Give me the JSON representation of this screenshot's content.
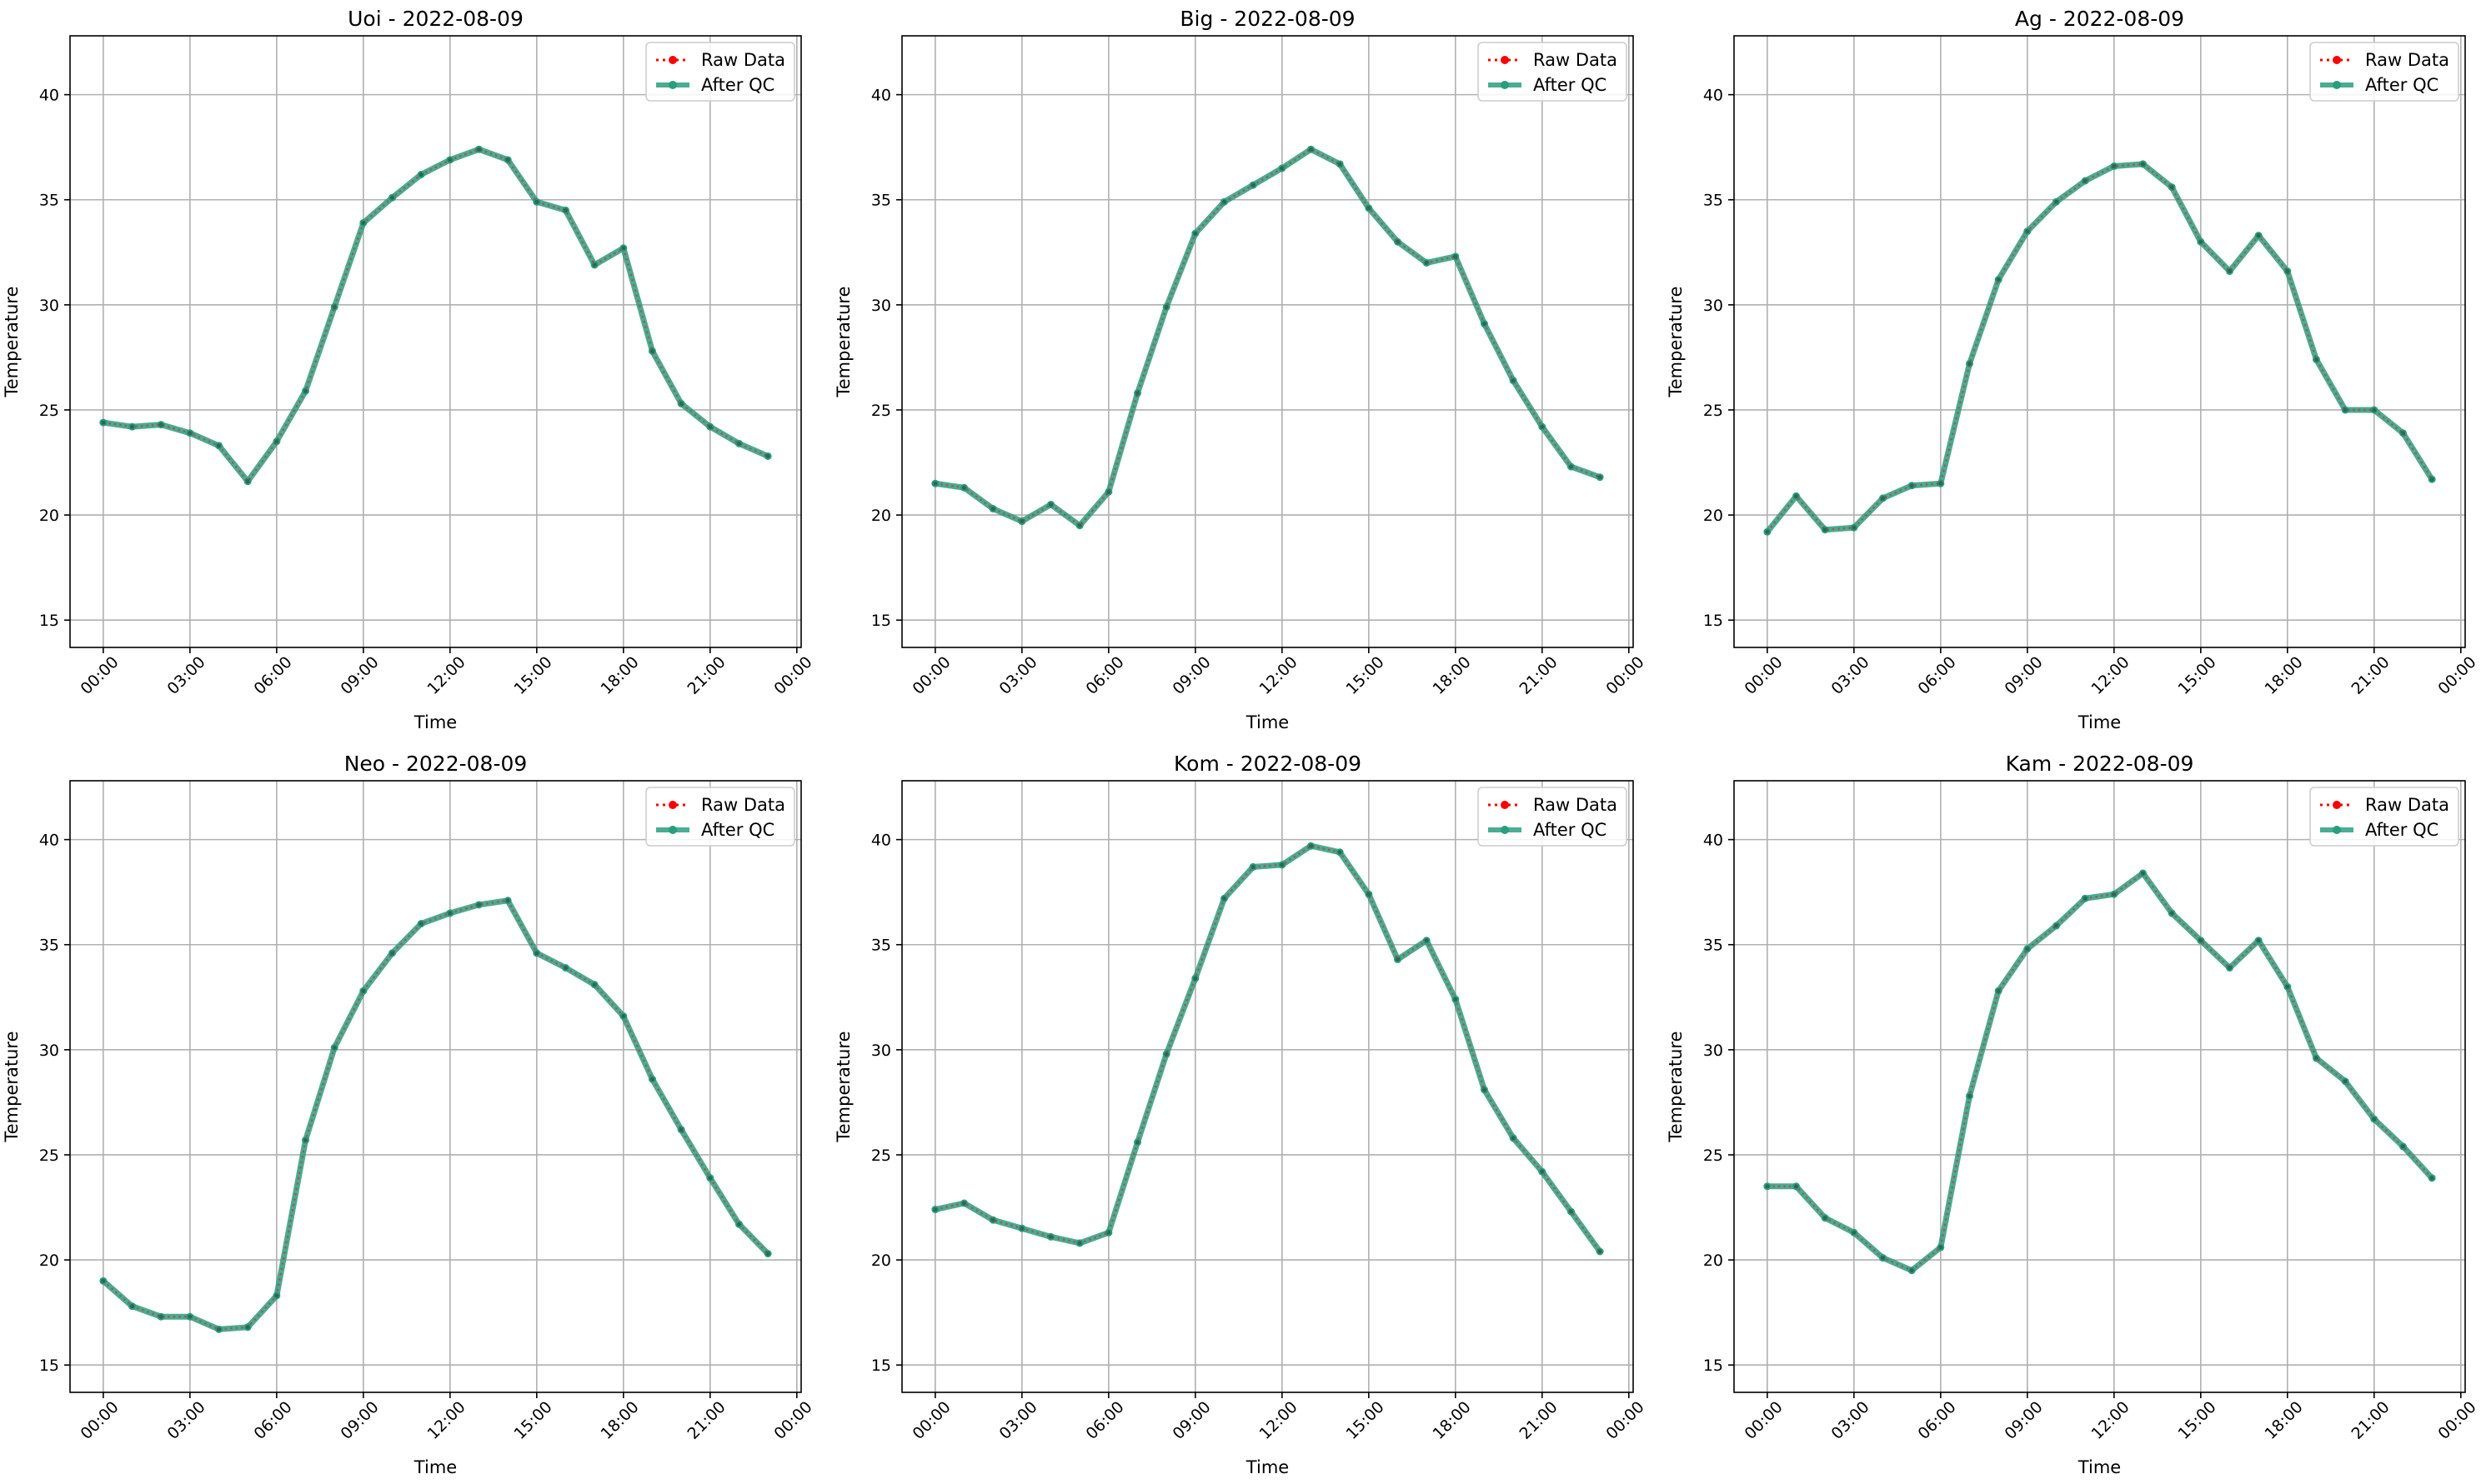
{
  "chart_data": [
    {
      "type": "line",
      "title": "Uoi - 2022-08-09",
      "xlabel": "Time",
      "ylabel": "Temperature",
      "x": [
        "00:00",
        "01:00",
        "02:00",
        "03:00",
        "04:00",
        "05:00",
        "06:00",
        "07:00",
        "08:00",
        "09:00",
        "10:00",
        "11:00",
        "12:00",
        "13:00",
        "14:00",
        "15:00",
        "16:00",
        "17:00",
        "18:00",
        "19:00",
        "20:00",
        "21:00",
        "22:00",
        "23:00"
      ],
      "xticks": [
        "00:00",
        "03:00",
        "06:00",
        "09:00",
        "12:00",
        "15:00",
        "18:00",
        "21:00",
        "00:00"
      ],
      "yticks": [
        15,
        20,
        25,
        30,
        35,
        40
      ],
      "ylim": [
        13.7,
        42.8
      ],
      "grid": true,
      "legend_position": "top-right",
      "series": [
        {
          "name": "Raw Data",
          "color": "#ff0000",
          "style": "dotted",
          "values": [
            24.4,
            24.2,
            24.3,
            23.9,
            23.3,
            21.6,
            23.5,
            25.9,
            29.9,
            33.9,
            35.1,
            36.2,
            36.9,
            37.4,
            36.9,
            34.9,
            34.5,
            31.9,
            32.7,
            27.8,
            25.3,
            24.2,
            23.4,
            22.8
          ]
        },
        {
          "name": "After QC",
          "color": "#2a9d7e",
          "style": "solid",
          "values": [
            24.4,
            24.2,
            24.3,
            23.9,
            23.3,
            21.6,
            23.5,
            25.9,
            29.9,
            33.9,
            35.1,
            36.2,
            36.9,
            37.4,
            36.9,
            34.9,
            34.5,
            31.9,
            32.7,
            27.8,
            25.3,
            24.2,
            23.4,
            22.8
          ]
        }
      ]
    },
    {
      "type": "line",
      "title": "Big - 2022-08-09",
      "xlabel": "Time",
      "ylabel": "Temperature",
      "x": [
        "00:00",
        "01:00",
        "02:00",
        "03:00",
        "04:00",
        "05:00",
        "06:00",
        "07:00",
        "08:00",
        "09:00",
        "10:00",
        "11:00",
        "12:00",
        "13:00",
        "14:00",
        "15:00",
        "16:00",
        "17:00",
        "18:00",
        "19:00",
        "20:00",
        "21:00",
        "22:00",
        "23:00"
      ],
      "xticks": [
        "00:00",
        "03:00",
        "06:00",
        "09:00",
        "12:00",
        "15:00",
        "18:00",
        "21:00",
        "00:00"
      ],
      "yticks": [
        15,
        20,
        25,
        30,
        35,
        40
      ],
      "ylim": [
        13.7,
        42.8
      ],
      "grid": true,
      "legend_position": "top-right",
      "series": [
        {
          "name": "Raw Data",
          "color": "#ff0000",
          "style": "dotted",
          "values": [
            21.5,
            21.3,
            20.3,
            19.7,
            20.5,
            19.5,
            21.1,
            25.8,
            29.9,
            33.4,
            34.9,
            35.7,
            36.5,
            37.4,
            36.7,
            34.6,
            33.0,
            32.0,
            32.3,
            29.1,
            26.4,
            24.2,
            22.3,
            21.8
          ]
        },
        {
          "name": "After QC",
          "color": "#2a9d7e",
          "style": "solid",
          "values": [
            21.5,
            21.3,
            20.3,
            19.7,
            20.5,
            19.5,
            21.1,
            25.8,
            29.9,
            33.4,
            34.9,
            35.7,
            36.5,
            37.4,
            36.7,
            34.6,
            33.0,
            32.0,
            32.3,
            29.1,
            26.4,
            24.2,
            22.3,
            21.8
          ]
        }
      ]
    },
    {
      "type": "line",
      "title": "Ag - 2022-08-09",
      "xlabel": "Time",
      "ylabel": "Temperature",
      "x": [
        "00:00",
        "01:00",
        "02:00",
        "03:00",
        "04:00",
        "05:00",
        "06:00",
        "07:00",
        "08:00",
        "09:00",
        "10:00",
        "11:00",
        "12:00",
        "13:00",
        "14:00",
        "15:00",
        "16:00",
        "17:00",
        "18:00",
        "19:00",
        "20:00",
        "21:00",
        "22:00",
        "23:00"
      ],
      "xticks": [
        "00:00",
        "03:00",
        "06:00",
        "09:00",
        "12:00",
        "15:00",
        "18:00",
        "21:00",
        "00:00"
      ],
      "yticks": [
        15,
        20,
        25,
        30,
        35,
        40
      ],
      "ylim": [
        13.7,
        42.8
      ],
      "grid": true,
      "legend_position": "top-right",
      "series": [
        {
          "name": "Raw Data",
          "color": "#ff0000",
          "style": "dotted",
          "values": [
            19.2,
            20.9,
            19.3,
            19.4,
            20.8,
            21.4,
            21.5,
            27.2,
            31.2,
            33.5,
            34.9,
            35.9,
            36.6,
            36.7,
            35.6,
            33.0,
            31.6,
            33.3,
            31.6,
            27.4,
            25.0,
            25.0,
            23.9,
            21.7
          ]
        },
        {
          "name": "After QC",
          "color": "#2a9d7e",
          "style": "solid",
          "values": [
            19.2,
            20.9,
            19.3,
            19.4,
            20.8,
            21.4,
            21.5,
            27.2,
            31.2,
            33.5,
            34.9,
            35.9,
            36.6,
            36.7,
            35.6,
            33.0,
            31.6,
            33.3,
            31.6,
            27.4,
            25.0,
            25.0,
            23.9,
            21.7
          ]
        }
      ]
    },
    {
      "type": "line",
      "title": "Neo - 2022-08-09",
      "xlabel": "Time",
      "ylabel": "Temperature",
      "x": [
        "00:00",
        "01:00",
        "02:00",
        "03:00",
        "04:00",
        "05:00",
        "06:00",
        "07:00",
        "08:00",
        "09:00",
        "10:00",
        "11:00",
        "12:00",
        "13:00",
        "14:00",
        "15:00",
        "16:00",
        "17:00",
        "18:00",
        "19:00",
        "20:00",
        "21:00",
        "22:00",
        "23:00"
      ],
      "xticks": [
        "00:00",
        "03:00",
        "06:00",
        "09:00",
        "12:00",
        "15:00",
        "18:00",
        "21:00",
        "00:00"
      ],
      "yticks": [
        15,
        20,
        25,
        30,
        35,
        40
      ],
      "ylim": [
        13.7,
        42.8
      ],
      "grid": true,
      "legend_position": "top-right",
      "series": [
        {
          "name": "Raw Data",
          "color": "#ff0000",
          "style": "dotted",
          "values": [
            19.0,
            17.8,
            17.3,
            17.3,
            16.7,
            16.8,
            18.3,
            25.7,
            30.1,
            32.8,
            34.6,
            36.0,
            36.5,
            36.9,
            37.1,
            34.6,
            33.9,
            33.1,
            31.6,
            28.6,
            26.2,
            23.9,
            21.7,
            20.3
          ]
        },
        {
          "name": "After QC",
          "color": "#2a9d7e",
          "style": "solid",
          "values": [
            19.0,
            17.8,
            17.3,
            17.3,
            16.7,
            16.8,
            18.3,
            25.7,
            30.1,
            32.8,
            34.6,
            36.0,
            36.5,
            36.9,
            37.1,
            34.6,
            33.9,
            33.1,
            31.6,
            28.6,
            26.2,
            23.9,
            21.7,
            20.3
          ]
        }
      ]
    },
    {
      "type": "line",
      "title": "Kom - 2022-08-09",
      "xlabel": "Time",
      "ylabel": "Temperature",
      "x": [
        "00:00",
        "01:00",
        "02:00",
        "03:00",
        "04:00",
        "05:00",
        "06:00",
        "07:00",
        "08:00",
        "09:00",
        "10:00",
        "11:00",
        "12:00",
        "13:00",
        "14:00",
        "15:00",
        "16:00",
        "17:00",
        "18:00",
        "19:00",
        "20:00",
        "21:00",
        "22:00",
        "23:00"
      ],
      "xticks": [
        "00:00",
        "03:00",
        "06:00",
        "09:00",
        "12:00",
        "15:00",
        "18:00",
        "21:00",
        "00:00"
      ],
      "yticks": [
        15,
        20,
        25,
        30,
        35,
        40
      ],
      "ylim": [
        13.7,
        42.8
      ],
      "grid": true,
      "legend_position": "top-right",
      "series": [
        {
          "name": "Raw Data",
          "color": "#ff0000",
          "style": "dotted",
          "values": [
            22.4,
            22.7,
            21.9,
            21.5,
            21.1,
            20.8,
            21.3,
            25.6,
            29.8,
            33.4,
            37.2,
            38.7,
            38.8,
            39.7,
            39.4,
            37.4,
            34.3,
            35.2,
            32.4,
            28.1,
            25.8,
            24.2,
            22.3,
            20.4
          ]
        },
        {
          "name": "After QC",
          "color": "#2a9d7e",
          "style": "solid",
          "values": [
            22.4,
            22.7,
            21.9,
            21.5,
            21.1,
            20.8,
            21.3,
            25.6,
            29.8,
            33.4,
            37.2,
            38.7,
            38.8,
            39.7,
            39.4,
            37.4,
            34.3,
            35.2,
            32.4,
            28.1,
            25.8,
            24.2,
            22.3,
            20.4
          ]
        }
      ]
    },
    {
      "type": "line",
      "title": "Kam - 2022-08-09",
      "xlabel": "Time",
      "ylabel": "Temperature",
      "x": [
        "00:00",
        "01:00",
        "02:00",
        "03:00",
        "04:00",
        "05:00",
        "06:00",
        "07:00",
        "08:00",
        "09:00",
        "10:00",
        "11:00",
        "12:00",
        "13:00",
        "14:00",
        "15:00",
        "16:00",
        "17:00",
        "18:00",
        "19:00",
        "20:00",
        "21:00",
        "22:00",
        "23:00"
      ],
      "xticks": [
        "00:00",
        "03:00",
        "06:00",
        "09:00",
        "12:00",
        "15:00",
        "18:00",
        "21:00",
        "00:00"
      ],
      "yticks": [
        15,
        20,
        25,
        30,
        35,
        40
      ],
      "ylim": [
        13.7,
        42.8
      ],
      "grid": true,
      "legend_position": "top-right",
      "series": [
        {
          "name": "Raw Data",
          "color": "#ff0000",
          "style": "dotted",
          "values": [
            23.5,
            23.5,
            22.0,
            21.3,
            20.1,
            19.5,
            20.6,
            27.8,
            32.8,
            34.8,
            35.9,
            37.2,
            37.4,
            38.4,
            36.5,
            35.2,
            33.9,
            35.2,
            33.0,
            29.6,
            28.5,
            26.7,
            25.4,
            23.9
          ]
        },
        {
          "name": "After QC",
          "color": "#2a9d7e",
          "style": "solid",
          "values": [
            23.5,
            23.5,
            22.0,
            21.3,
            20.1,
            19.5,
            20.6,
            27.8,
            32.8,
            34.8,
            35.9,
            37.2,
            37.4,
            38.4,
            36.5,
            35.2,
            33.9,
            35.2,
            33.0,
            29.6,
            28.5,
            26.7,
            25.4,
            23.9
          ]
        }
      ]
    }
  ]
}
